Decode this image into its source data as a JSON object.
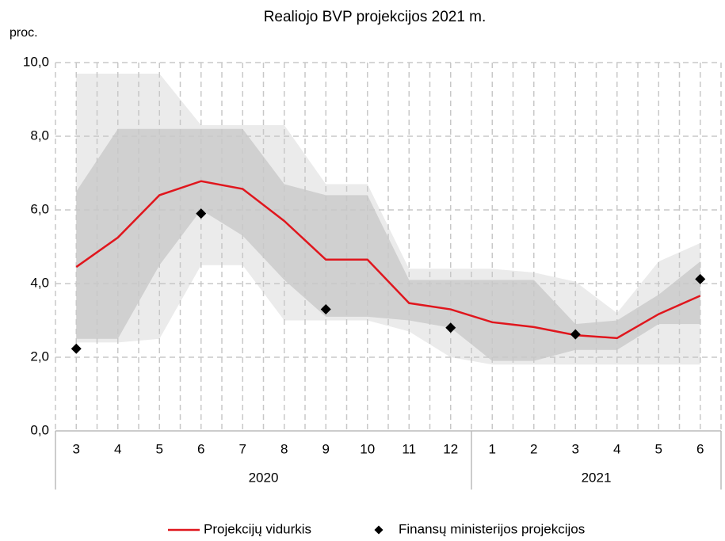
{
  "chart_data": {
    "type": "line",
    "title": "Realiojo BVP projekcijos 2021 m.",
    "y_label": "proc.",
    "groups": [
      {
        "label": "2020",
        "categories": [
          "3",
          "4",
          "5",
          "6",
          "7",
          "8",
          "9",
          "10",
          "11",
          "12"
        ]
      },
      {
        "label": "2021",
        "categories": [
          "1",
          "2",
          "3",
          "4",
          "5",
          "6"
        ]
      }
    ],
    "ylim": [
      0,
      10
    ],
    "yticks": [
      {
        "value": 0,
        "label": "0,0"
      },
      {
        "value": 2,
        "label": "2,0"
      },
      {
        "value": 4,
        "label": "4,0"
      },
      {
        "value": 6,
        "label": "6,0"
      },
      {
        "value": 8,
        "label": "8,0"
      },
      {
        "value": 10,
        "label": "10,0"
      }
    ],
    "grid": true,
    "bands": [
      {
        "color": "#ebebeb",
        "upper": [
          9.7,
          9.7,
          9.7,
          8.3,
          8.3,
          8.3,
          6.7,
          6.7,
          4.4,
          4.4,
          4.4,
          4.3,
          4.05,
          3.2,
          4.6,
          5.1
        ],
        "lower": [
          2.4,
          2.4,
          2.5,
          4.5,
          4.5,
          3.0,
          3.0,
          3.0,
          2.7,
          2.0,
          1.8,
          1.8,
          1.8,
          1.8,
          1.8,
          1.8
        ]
      },
      {
        "color": "#d0d0d0",
        "upper": [
          6.5,
          8.2,
          8.2,
          8.2,
          8.2,
          6.7,
          6.4,
          6.4,
          4.1,
          4.1,
          4.1,
          4.1,
          2.9,
          3.0,
          3.7,
          4.6
        ],
        "lower": [
          2.5,
          2.5,
          4.5,
          6.0,
          5.3,
          4.1,
          3.1,
          3.1,
          3.0,
          2.8,
          1.9,
          1.9,
          2.2,
          2.2,
          2.9,
          2.9
        ]
      }
    ],
    "series": [
      {
        "name": "Projekcijų vidurkis",
        "color": "#e0161d",
        "marker": "line",
        "values": [
          4.45,
          5.25,
          6.4,
          6.78,
          6.57,
          5.7,
          4.65,
          4.65,
          3.47,
          3.3,
          2.95,
          2.82,
          2.6,
          2.52,
          3.17,
          3.67
        ]
      },
      {
        "name": "Finansų ministerijos projekcijos",
        "color": "#000000",
        "marker": "diamond",
        "values": [
          2.23,
          null,
          null,
          5.9,
          null,
          null,
          3.3,
          null,
          null,
          2.8,
          null,
          null,
          2.62,
          null,
          null,
          4.12
        ]
      }
    ]
  }
}
